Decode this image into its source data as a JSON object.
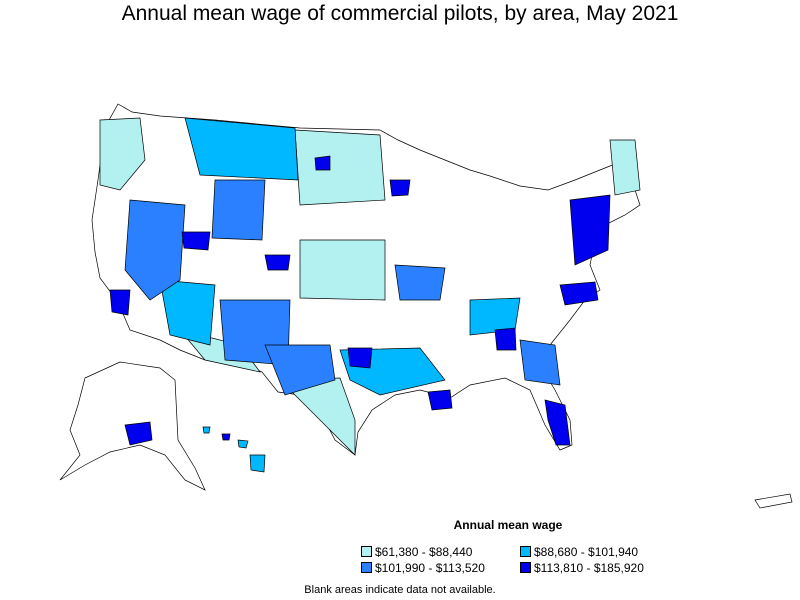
{
  "title": "Annual mean wage of commercial pilots, by area, May 2021",
  "legend": {
    "title": "Annual mean wage",
    "items": [
      {
        "label": "$61,380 - $88,440",
        "color": "#b3f0f0"
      },
      {
        "label": "$88,680 - $101,940",
        "color": "#00b8ff"
      },
      {
        "label": "$101,990 - $113,520",
        "color": "#2a80ff"
      },
      {
        "label": "$113,810 - $185,920",
        "color": "#0000ee"
      }
    ]
  },
  "footnote": "Blank areas indicate data not available.",
  "colors": {
    "no_data": "#ffffff",
    "border": "#000000"
  }
}
